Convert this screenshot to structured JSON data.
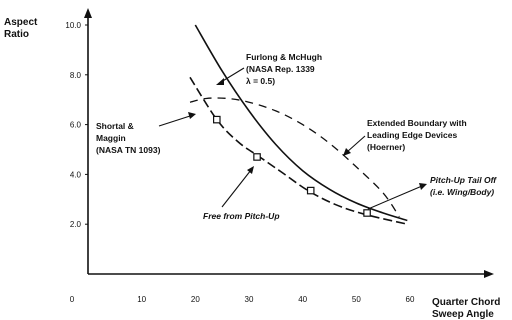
{
  "chart_data": {
    "type": "line",
    "title": "",
    "xlabel": [
      "Quarter Chord",
      "Sweep Angle"
    ],
    "ylabel": [
      "Aspect",
      "Ratio"
    ],
    "xlim": [
      0,
      60
    ],
    "ylim": [
      0,
      10
    ],
    "x_ticks": [
      "0",
      "10",
      "20",
      "30",
      "40",
      "50",
      "60"
    ],
    "y_ticks": [
      "2.0",
      "4.0",
      "6.0",
      "8.0",
      "10.0"
    ],
    "grid": false,
    "series": [
      {
        "style": "solid",
        "x": [
          20,
          25,
          30,
          35,
          40,
          45,
          50,
          55,
          59.5
        ],
        "y": [
          10.0,
          8.15,
          6.55,
          5.2,
          4.15,
          3.4,
          2.85,
          2.45,
          2.15
        ]
      },
      {
        "style": "dashed",
        "markers": true,
        "x": [
          19,
          24,
          28,
          32,
          36,
          41,
          46,
          51.5,
          59.5
        ],
        "y": [
          7.9,
          6.2,
          5.3,
          4.7,
          4.1,
          3.35,
          2.8,
          2.4,
          2.0
        ]
      },
      {
        "style": "dashed-long",
        "x": [
          19,
          22,
          26,
          30,
          35,
          40,
          45,
          50,
          55,
          58
        ],
        "y": [
          6.9,
          7.05,
          7.05,
          6.9,
          6.55,
          6.0,
          5.25,
          4.3,
          3.25,
          2.3
        ]
      }
    ],
    "markers": [
      {
        "x": 24,
        "y": 6.2
      },
      {
        "x": 31.5,
        "y": 4.7
      },
      {
        "x": 41.5,
        "y": 3.35
      },
      {
        "x": 52,
        "y": 2.45
      }
    ],
    "annotations": [
      {
        "id": "furlong",
        "lines": [
          "Furlong & McHugh",
          "(NASA Rep. 1339",
          "λ = 0.5)"
        ]
      },
      {
        "id": "shortal",
        "lines": [
          "Shortal &",
          "Maggin",
          "(NASA TN 1093)"
        ]
      },
      {
        "id": "extended",
        "lines": [
          "Extended Boundary with",
          "Leading Edge Devices",
          "(Hoerner)"
        ]
      },
      {
        "id": "free",
        "lines": [
          "Free from Pitch-Up"
        ]
      },
      {
        "id": "tailoff",
        "lines": [
          "Pitch-Up Tail Off",
          "(i.e. Wing/Body)"
        ]
      }
    ]
  }
}
